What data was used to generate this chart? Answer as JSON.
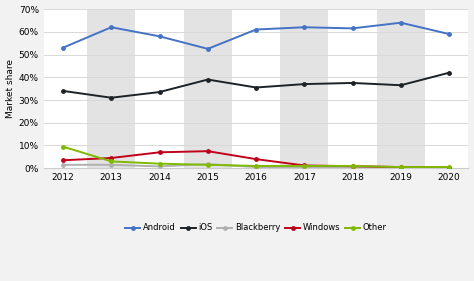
{
  "years": [
    2012,
    2013,
    2014,
    2015,
    2016,
    2017,
    2018,
    2019,
    2020
  ],
  "android": [
    53,
    62,
    58,
    52.5,
    61,
    62,
    61.5,
    64,
    59
  ],
  "ios": [
    34,
    31,
    33.5,
    39,
    35.5,
    37,
    37.5,
    36.5,
    42
  ],
  "blackberry": [
    1.5,
    1.5,
    0.8,
    1.8,
    0.5,
    0.3,
    0.3,
    0.2,
    0.3
  ],
  "windows": [
    3.5,
    4.5,
    7,
    7.5,
    4,
    1.2,
    0.9,
    0.5,
    0.3
  ],
  "other": [
    9.5,
    3,
    2,
    1.5,
    1,
    1,
    1,
    0.5,
    0.5
  ],
  "colors": {
    "android": "#4472c4",
    "ios": "#1c2226",
    "blackberry": "#b0b0b0",
    "windows": "#c0001a",
    "other": "#7fba00"
  },
  "ylabel": "Market share",
  "ylim": [
    0,
    70
  ],
  "yticks": [
    0,
    10,
    20,
    30,
    40,
    50,
    60,
    70
  ],
  "bg_color": "#f2f2f2",
  "plot_bg": "#ffffff",
  "band_color": "#e3e3e3",
  "grid_color": "#d8d8d8"
}
